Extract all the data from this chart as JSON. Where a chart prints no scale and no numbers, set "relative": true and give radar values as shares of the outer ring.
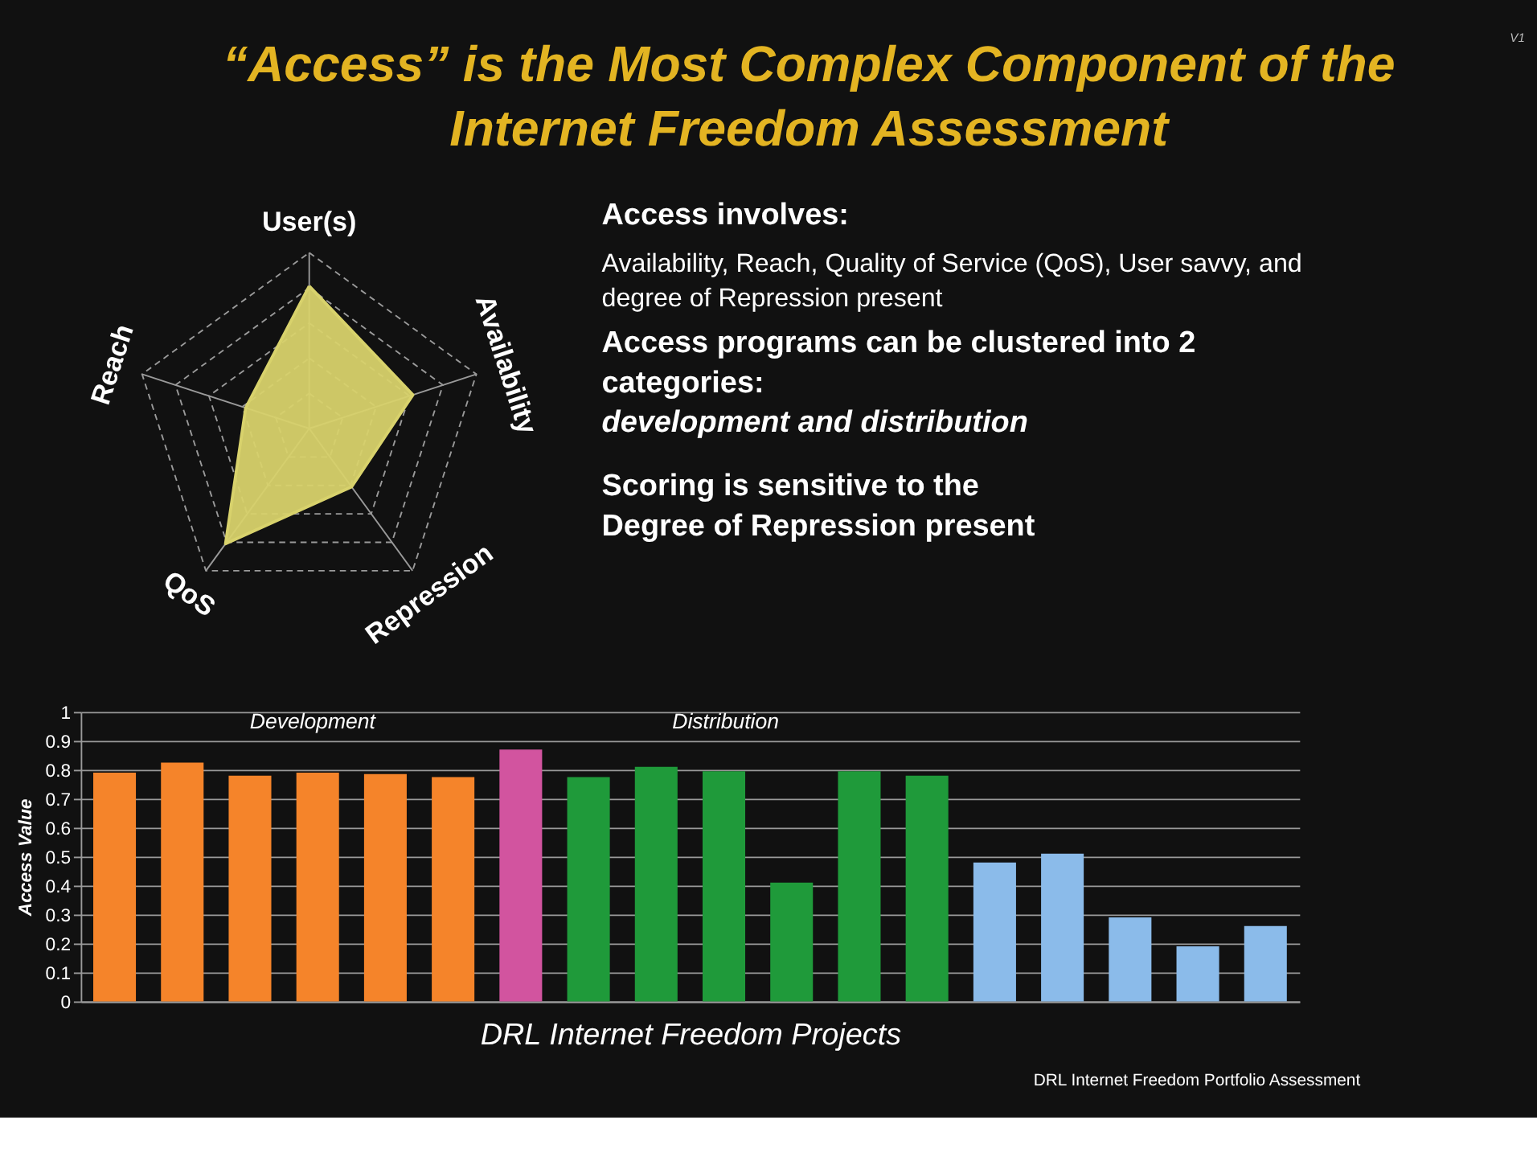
{
  "chart_data": [
    {
      "type": "radar",
      "title": "“Access” is the Most Complex Component of the Internet Freedom Assessment",
      "categories": [
        "User(s)",
        "Availability",
        "Repression",
        "QoS",
        "Reach"
      ],
      "relative": true,
      "grid": true,
      "marker": "none",
      "series": [
        {
          "color": "#d8d26c",
          "values": [
            0.81,
            0.62,
            0.41,
            0.81,
            0.38
          ]
        }
      ],
      "annotations": [
        "Access involves:",
        "Availability, Reach, Quality of Service (QoS), User savvy, and degree of Repression present",
        "Access programs can be clustered into 2 categories:",
        "development and distribution",
        "Scoring is sensitive to the Degree of Repression present",
        "V1"
      ]
    },
    {
      "type": "bar",
      "categories": [
        null,
        null,
        null,
        null,
        null,
        null,
        null,
        null,
        null,
        null,
        null,
        null,
        null,
        null,
        null,
        null,
        null,
        null
      ],
      "values": [
        0.79,
        0.825,
        0.78,
        0.79,
        0.785,
        0.775,
        0.87,
        0.775,
        0.81,
        0.795,
        0.41,
        0.795,
        0.78,
        0.48,
        0.51,
        0.29,
        0.19,
        0.26
      ],
      "colors": [
        "#f5842a",
        "#f5842a",
        "#f5842a",
        "#f5842a",
        "#f5842a",
        "#f5842a",
        "#d2549f",
        "#1f9a3a",
        "#1f9a3a",
        "#1f9a3a",
        "#1f9a3a",
        "#1f9a3a",
        "#1f9a3a",
        "#8bbbea",
        "#8bbbea",
        "#8bbbea",
        "#8bbbea",
        "#8bbbea"
      ],
      "ylim": [
        0,
        1
      ],
      "yticks": [
        0,
        0.1,
        0.2,
        0.3,
        0.4,
        0.5,
        0.6,
        0.7,
        0.8,
        0.9,
        1
      ],
      "grid": "y",
      "tick_labels": "y",
      "ylabel": "Access Value",
      "xlabel": "DRL Internet Freedom Projects",
      "annotations": [
        "Development",
        "Distribution",
        "DRL Internet Freedom Portfolio Assessment"
      ]
    }
  ]
}
